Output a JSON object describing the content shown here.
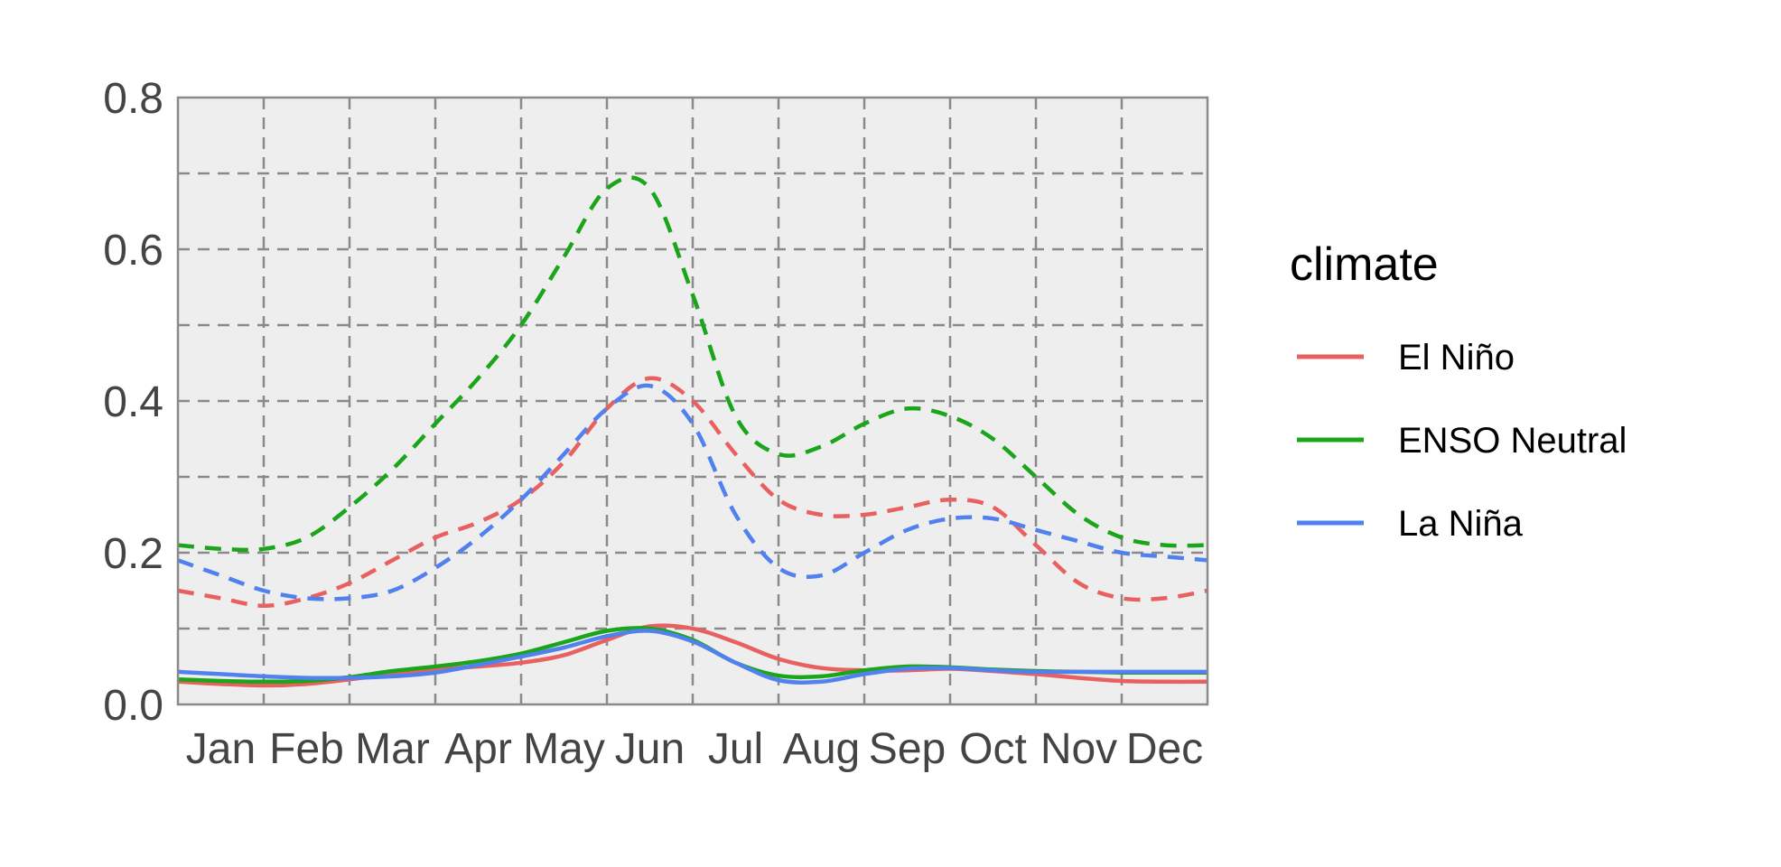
{
  "chart_data": {
    "type": "line",
    "title": "",
    "xlabel": "",
    "ylabel": "",
    "categories": [
      "Jan",
      "Feb",
      "Mar",
      "Apr",
      "May",
      "Jun",
      "Jul",
      "Aug",
      "Sep",
      "Oct",
      "Nov",
      "Dec"
    ],
    "x_range": [
      0.5,
      12.5
    ],
    "ylim": [
      0.0,
      0.8
    ],
    "y_ticks": [
      0.0,
      0.2,
      0.4,
      0.6,
      0.8
    ],
    "y_tick_labels": [
      "0.0",
      "0.2",
      "0.4",
      "0.6",
      "0.8"
    ],
    "grid": true,
    "legend": {
      "title": "climate",
      "placement": "right",
      "entries": [
        {
          "label": "El Niño",
          "color": "#e8605f"
        },
        {
          "label": "ENSO Neutral",
          "color": "#1aa51a"
        },
        {
          "label": "La Niña",
          "color": "#5081ee"
        }
      ]
    },
    "series": [
      {
        "legend_index": 0,
        "color": "#e8605f",
        "dash": true,
        "x": [
          0.5,
          1,
          1.5,
          2,
          2.5,
          3,
          3.5,
          4,
          4.5,
          5,
          5.5,
          6,
          6.5,
          7,
          7.5,
          8,
          8.5,
          9,
          9.5,
          10,
          10.5,
          11,
          11.5,
          12,
          12.5
        ],
        "values": [
          0.15,
          0.14,
          0.13,
          0.14,
          0.16,
          0.19,
          0.22,
          0.24,
          0.27,
          0.32,
          0.39,
          0.43,
          0.4,
          0.33,
          0.27,
          0.25,
          0.25,
          0.26,
          0.27,
          0.26,
          0.21,
          0.16,
          0.14,
          0.14,
          0.15
        ]
      },
      {
        "legend_index": 1,
        "color": "#1aa51a",
        "dash": true,
        "x": [
          0.5,
          1,
          1.5,
          2,
          2.5,
          3,
          3.5,
          4,
          4.5,
          5,
          5.5,
          6,
          6.5,
          7,
          7.5,
          8,
          8.5,
          9,
          9.5,
          10,
          10.5,
          11,
          11.5,
          12,
          12.5
        ],
        "values": [
          0.21,
          0.205,
          0.205,
          0.22,
          0.26,
          0.31,
          0.37,
          0.43,
          0.5,
          0.59,
          0.68,
          0.68,
          0.54,
          0.38,
          0.33,
          0.34,
          0.37,
          0.39,
          0.38,
          0.35,
          0.3,
          0.25,
          0.22,
          0.21,
          0.21
        ]
      },
      {
        "legend_index": 2,
        "color": "#5081ee",
        "dash": true,
        "x": [
          0.5,
          1,
          1.5,
          2,
          2.5,
          3,
          3.5,
          4,
          4.5,
          5,
          5.5,
          6,
          6.5,
          7,
          7.5,
          8,
          8.5,
          9,
          9.5,
          10,
          10.5,
          11,
          11.5,
          12,
          12.5
        ],
        "values": [
          0.19,
          0.17,
          0.15,
          0.14,
          0.14,
          0.15,
          0.18,
          0.22,
          0.27,
          0.33,
          0.39,
          0.42,
          0.37,
          0.25,
          0.18,
          0.17,
          0.2,
          0.23,
          0.245,
          0.245,
          0.23,
          0.215,
          0.2,
          0.195,
          0.19
        ]
      },
      {
        "legend_index": 0,
        "color": "#e8605f",
        "dash": false,
        "x": [
          0.5,
          1,
          1.5,
          2,
          2.5,
          3,
          3.5,
          4,
          4.5,
          5,
          5.5,
          6,
          6.5,
          7,
          7.5,
          8,
          8.5,
          9,
          9.5,
          10,
          10.5,
          11,
          11.5,
          12,
          12.5
        ],
        "values": [
          0.03,
          0.027,
          0.025,
          0.027,
          0.033,
          0.04,
          0.046,
          0.05,
          0.055,
          0.065,
          0.085,
          0.103,
          0.1,
          0.082,
          0.06,
          0.048,
          0.045,
          0.045,
          0.047,
          0.044,
          0.04,
          0.035,
          0.031,
          0.03,
          0.03
        ]
      },
      {
        "legend_index": 1,
        "color": "#1aa51a",
        "dash": false,
        "x": [
          0.5,
          1,
          1.5,
          2,
          2.5,
          3,
          3.5,
          4,
          4.5,
          5,
          5.5,
          6,
          6.5,
          7,
          7.5,
          8,
          8.5,
          9,
          9.5,
          10,
          10.5,
          11,
          11.5,
          12,
          12.5
        ],
        "values": [
          0.033,
          0.031,
          0.03,
          0.031,
          0.036,
          0.044,
          0.05,
          0.057,
          0.067,
          0.082,
          0.097,
          0.1,
          0.085,
          0.055,
          0.038,
          0.037,
          0.045,
          0.05,
          0.049,
          0.046,
          0.044,
          0.043,
          0.042,
          0.042,
          0.042
        ]
      },
      {
        "legend_index": 2,
        "color": "#5081ee",
        "dash": false,
        "x": [
          0.5,
          1,
          1.5,
          2,
          2.5,
          3,
          3.5,
          4,
          4.5,
          5,
          5.5,
          6,
          6.5,
          7,
          7.5,
          8,
          8.5,
          9,
          9.5,
          10,
          10.5,
          11,
          11.5,
          12,
          12.5
        ],
        "values": [
          0.043,
          0.04,
          0.037,
          0.035,
          0.035,
          0.037,
          0.042,
          0.052,
          0.063,
          0.075,
          0.09,
          0.097,
          0.083,
          0.055,
          0.032,
          0.03,
          0.04,
          0.047,
          0.048,
          0.045,
          0.043,
          0.043,
          0.043,
          0.043,
          0.043
        ]
      }
    ]
  }
}
